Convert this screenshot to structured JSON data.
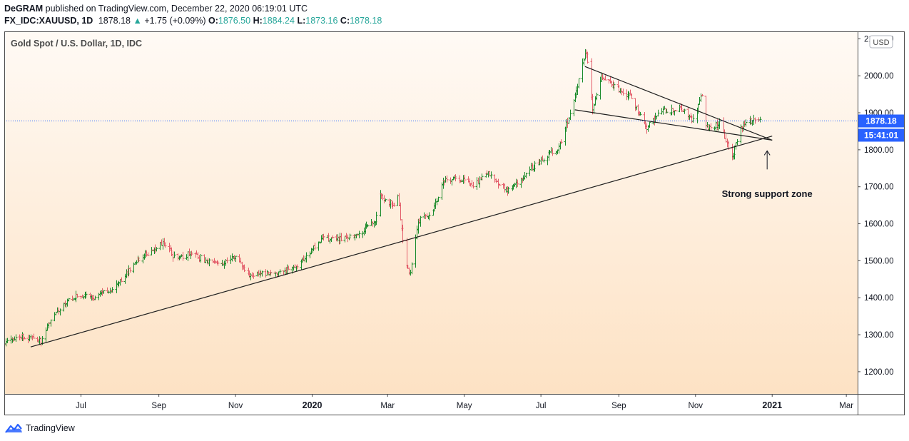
{
  "header": {
    "publisher": "DeGRAM",
    "published_text": "published on TradingView.com, December 22, 2020 06:19:01 UTC",
    "symbol": "FX_IDC:XAUUSD, 1D",
    "last": "1878.18",
    "change": "+1.75 (+0.09%)",
    "open_label": "O:",
    "open": "1876.50",
    "high_label": "H:",
    "high": "1884.24",
    "low_label": "L:",
    "low": "1873.16",
    "close_label": "C:",
    "close": "1878.18"
  },
  "footer": {
    "brand": "TradingView"
  },
  "colors": {
    "up": "#26a69a",
    "down": "#ef5350",
    "bullish_bar": "#1b8a2a",
    "bearish_bar": "#e35d6a",
    "price_tag": "#2962ff",
    "bg_top": "#fffaf5",
    "bg_bottom": "#fde2c4"
  },
  "chart_data": {
    "type": "bar",
    "title": "Gold Spot / U.S. Dollar, 1D, IDC",
    "currency_label": "USD",
    "ylim": [
      1140,
      2120
    ],
    "y_ticks": [
      1200,
      1300,
      1400,
      1500,
      1600,
      1700,
      1800,
      1900,
      2000,
      2100
    ],
    "y_tick_labels": [
      "1200.00",
      "1300.00",
      "1400.00",
      "1500.00",
      "1600.00",
      "1700.00",
      "1800.00",
      "1900.00",
      "2000.00",
      "2100.00"
    ],
    "x_start": "2019-05-01",
    "x_end": "2021-03-10",
    "x_ticks": [
      {
        "date": "2019-07-01",
        "label": "Jul",
        "bold": false
      },
      {
        "date": "2019-09-01",
        "label": "Sep",
        "bold": false
      },
      {
        "date": "2019-11-01",
        "label": "Nov",
        "bold": false
      },
      {
        "date": "2020-01-01",
        "label": "2020",
        "bold": true
      },
      {
        "date": "2020-03-01",
        "label": "Mar",
        "bold": false
      },
      {
        "date": "2020-05-01",
        "label": "May",
        "bold": false
      },
      {
        "date": "2020-07-01",
        "label": "Jul",
        "bold": false
      },
      {
        "date": "2020-09-01",
        "label": "Sep",
        "bold": false
      },
      {
        "date": "2020-11-01",
        "label": "Nov",
        "bold": false
      },
      {
        "date": "2021-01-01",
        "label": "2021",
        "bold": true
      },
      {
        "date": "2021-03-01",
        "label": "Mar",
        "bold": false
      }
    ],
    "price_path": [
      [
        "2019-05-01",
        1275
      ],
      [
        "2019-05-15",
        1295
      ],
      [
        "2019-05-30",
        1282
      ],
      [
        "2019-06-05",
        1330
      ],
      [
        "2019-06-20",
        1395
      ],
      [
        "2019-07-01",
        1408
      ],
      [
        "2019-07-10",
        1400
      ],
      [
        "2019-07-25",
        1420
      ],
      [
        "2019-08-05",
        1460
      ],
      [
        "2019-08-15",
        1505
      ],
      [
        "2019-08-25",
        1525
      ],
      [
        "2019-09-04",
        1550
      ],
      [
        "2019-09-15",
        1500
      ],
      [
        "2019-09-25",
        1520
      ],
      [
        "2019-10-05",
        1505
      ],
      [
        "2019-10-20",
        1490
      ],
      [
        "2019-11-01",
        1510
      ],
      [
        "2019-11-12",
        1460
      ],
      [
        "2019-11-25",
        1465
      ],
      [
        "2019-12-10",
        1470
      ],
      [
        "2019-12-25",
        1500
      ],
      [
        "2020-01-08",
        1560
      ],
      [
        "2020-01-20",
        1560
      ],
      [
        "2020-02-05",
        1565
      ],
      [
        "2020-02-20",
        1610
      ],
      [
        "2020-02-24",
        1680
      ],
      [
        "2020-03-05",
        1650
      ],
      [
        "2020-03-09",
        1670
      ],
      [
        "2020-03-16",
        1480
      ],
      [
        "2020-03-19",
        1470
      ],
      [
        "2020-03-25",
        1610
      ],
      [
        "2020-04-05",
        1620
      ],
      [
        "2020-04-14",
        1720
      ],
      [
        "2020-04-25",
        1720
      ],
      [
        "2020-05-10",
        1705
      ],
      [
        "2020-05-18",
        1740
      ],
      [
        "2020-06-05",
        1690
      ],
      [
        "2020-06-20",
        1740
      ],
      [
        "2020-07-01",
        1775
      ],
      [
        "2020-07-15",
        1805
      ],
      [
        "2020-07-24",
        1900
      ],
      [
        "2020-08-06",
        2065
      ],
      [
        "2020-08-11",
        1910
      ],
      [
        "2020-08-18",
        1995
      ],
      [
        "2020-08-31",
        1965
      ],
      [
        "2020-09-10",
        1945
      ],
      [
        "2020-09-23",
        1860
      ],
      [
        "2020-10-05",
        1905
      ],
      [
        "2020-10-20",
        1910
      ],
      [
        "2020-10-30",
        1880
      ],
      [
        "2020-11-06",
        1950
      ],
      [
        "2020-11-09",
        1860
      ],
      [
        "2020-11-20",
        1870
      ],
      [
        "2020-11-30",
        1780
      ],
      [
        "2020-12-07",
        1865
      ],
      [
        "2020-12-16",
        1880
      ],
      [
        "2020-12-18",
        1885
      ],
      [
        "2020-12-22",
        1878
      ]
    ],
    "current_price": 1878.18,
    "current_price_label": "1878.18",
    "countdown_label": "15:41:01",
    "trendlines": [
      {
        "name": "long-term-support-line",
        "from": [
          "2019-05-22",
          1267
        ],
        "to": [
          "2021-01-01",
          1837
        ]
      },
      {
        "name": "wedge-upper-line",
        "from": [
          "2020-08-05",
          2025
        ],
        "to": [
          "2021-01-01",
          1826
        ]
      },
      {
        "name": "wedge-lower-line",
        "from": [
          "2020-07-28",
          1908
        ],
        "to": [
          "2021-01-01",
          1826
        ]
      }
    ],
    "annotations": [
      {
        "text": "Strong support zone",
        "date": "2020-12-28",
        "price": 1680,
        "arrow_from_price": 1747,
        "arrow_to_price": 1797
      }
    ]
  }
}
